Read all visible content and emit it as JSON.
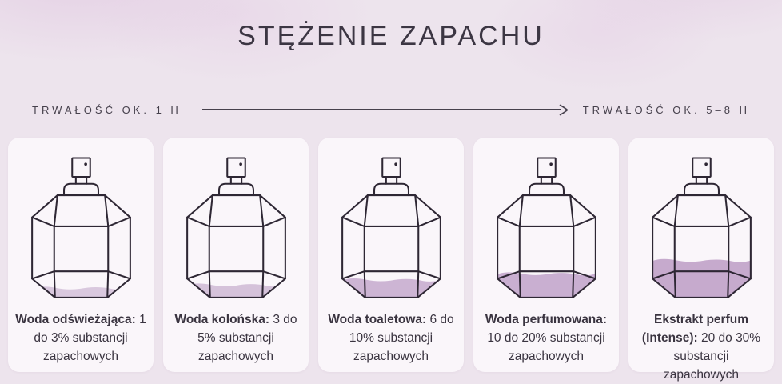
{
  "title": "STĘŻENIE ZAPACHU",
  "scale": {
    "left_label": "TRWAŁOŚĆ OK. 1 H",
    "right_label": "TRWAŁOŚĆ OK. 5–8 H"
  },
  "colors": {
    "background": "#ede4ed",
    "watercolor_blob": "#e3cbe3",
    "card_background": "#faf6fa",
    "line_art": "#2e2734",
    "text": "#3a3440"
  },
  "cards": [
    {
      "name": "Woda odświeżająca:",
      "description": "1 do 3% substancji zapachowych",
      "fill_percent": 9,
      "fill_color": "#d9c8de"
    },
    {
      "name": "Woda kolońska:",
      "description": "3 do 5% substancji zapachowych",
      "fill_percent": 12,
      "fill_color": "#d5c2da"
    },
    {
      "name": "Woda toaletowa:",
      "description": "6 do 10% substancji zapachowych",
      "fill_percent": 17,
      "fill_color": "#cdb5d4"
    },
    {
      "name": "Woda perfumowana:",
      "description": "10 do 20% substancji zapachowych",
      "fill_percent": 23,
      "fill_color": "#c9afd1"
    },
    {
      "name": "Ekstrakt perfum (Intense):",
      "description": "20 do 30% substancji zapachowych",
      "fill_percent": 36,
      "fill_color": "#c6aacd"
    }
  ]
}
